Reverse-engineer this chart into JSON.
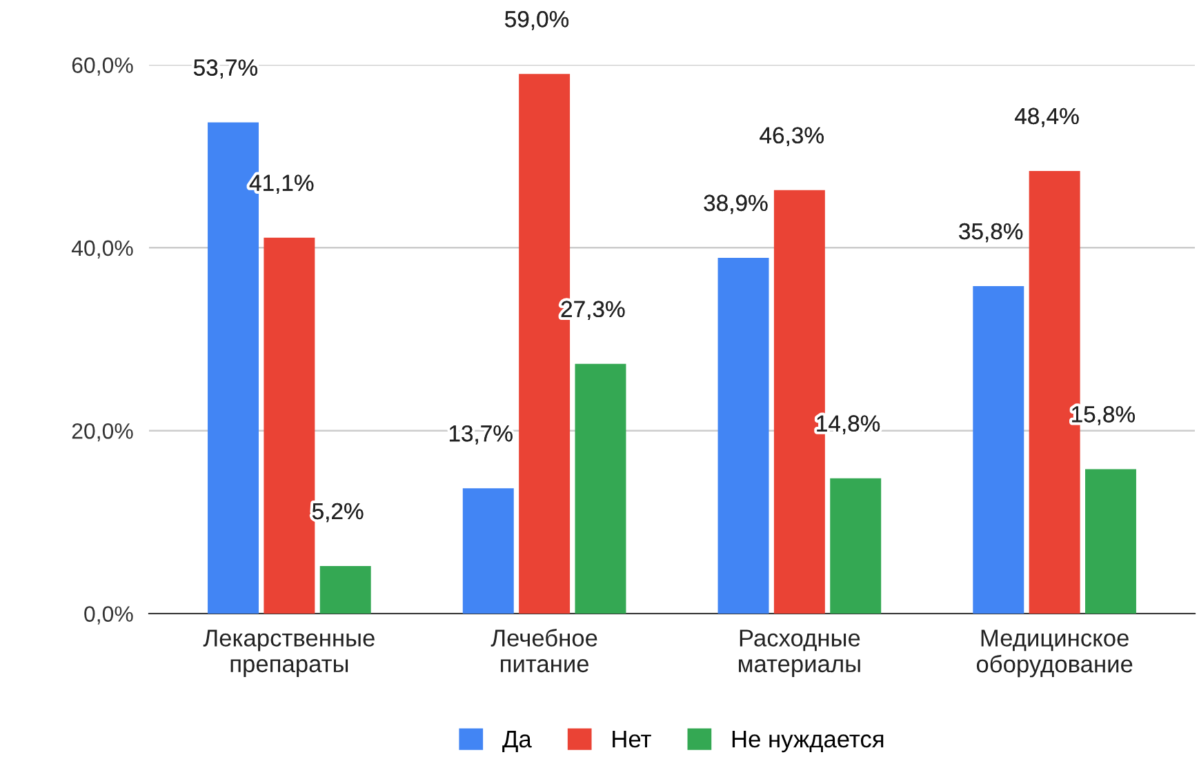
{
  "chart_data": {
    "type": "bar",
    "categories": [
      "Лекарственные\nпрепараты",
      "Лечебное\nпитание",
      "Расходные\nматериалы",
      "Медицинское\nоборудование"
    ],
    "series": [
      {
        "name": "Да",
        "color": "#4285f4",
        "values": [
          53.7,
          13.7,
          38.9,
          35.8
        ],
        "value_labels": [
          "53,7%",
          "13,7%",
          "38,9%",
          "35,8%"
        ]
      },
      {
        "name": "Нет",
        "color": "#ea4335",
        "values": [
          41.1,
          59.0,
          46.3,
          48.4
        ],
        "value_labels": [
          "41,1%",
          "59,0%",
          "46,3%",
          "48,4%"
        ]
      },
      {
        "name": "Не нуждается",
        "color": "#34a853",
        "values": [
          5.2,
          27.3,
          14.8,
          15.8
        ],
        "value_labels": [
          "5,2%",
          "27,3%",
          "14,8%",
          "15,8%"
        ]
      }
    ],
    "ylim": [
      0,
      60
    ],
    "yticks": [
      {
        "value": 0,
        "label": "0,0%"
      },
      {
        "value": 20,
        "label": "20,0%"
      },
      {
        "value": 40,
        "label": "40,0%"
      },
      {
        "value": 60,
        "label": "60,0%"
      }
    ],
    "grid": "y",
    "legend": "bottom"
  }
}
